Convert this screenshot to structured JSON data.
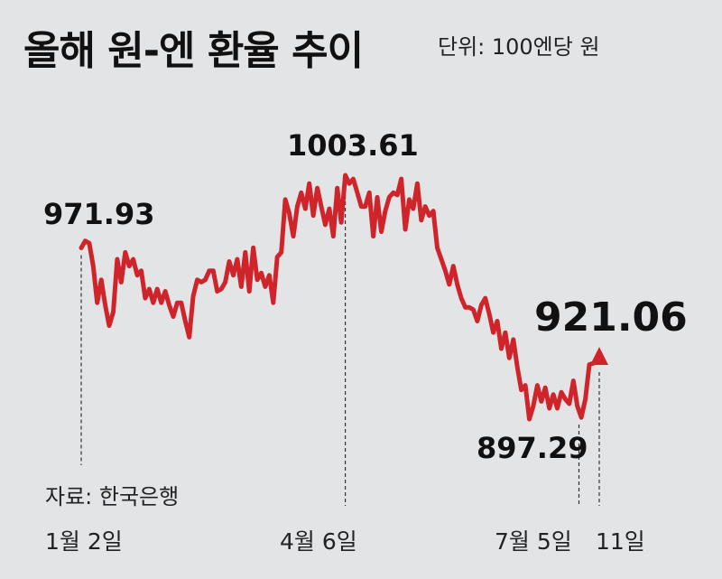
{
  "header": {
    "title": "올해 원-엔 환율 추이",
    "unit": "단위: 100엔당 원"
  },
  "source": "자료: 한국은행",
  "chart_data": {
    "type": "line",
    "title": "올해 원-엔 환율 추이",
    "ylabel": "100엔당 원",
    "ylim": [
      880,
      1020
    ],
    "line_color": "#d0242b",
    "x_ticks": [
      "1월 2일",
      "4월 6일",
      "7월 5일",
      "11일"
    ],
    "annotations": [
      {
        "label": "971.93",
        "date": "1월 2일",
        "value": 971.93
      },
      {
        "label": "1003.61",
        "date": "4월 6일",
        "value": 1003.61
      },
      {
        "label": "897.29",
        "date": "7월 5일",
        "value": 897.29
      },
      {
        "label": "921.06",
        "date": "11일",
        "value": 921.06,
        "highlight": true
      }
    ],
    "series": [
      {
        "values": [
          971.93,
          975.0,
          974.0,
          964.0,
          948.0,
          958.0,
          947.0,
          938.0,
          944.0,
          967.0,
          957.0,
          970.0,
          964.0,
          967.0,
          960.0,
          962.0,
          950.0,
          954.0,
          948.0,
          954.0,
          948.0,
          953.0,
          947.0,
          942.0,
          948.0,
          948.0,
          940.0,
          933.0,
          951.0,
          958.0,
          957.0,
          958.0,
          962.0,
          962.0,
          953.0,
          954.0,
          957.0,
          966.0,
          960.0,
          967.0,
          955.0,
          970.0,
          953.0,
          972.0,
          958.0,
          961.0,
          955.0,
          960.0,
          948.0,
          968.0,
          970.0,
          993.0,
          987.0,
          977.0,
          990.0,
          996.0,
          989.0,
          1000.0,
          986.0,
          998.0,
          990.0,
          982.0,
          989.0,
          977.0,
          998.0,
          983.0,
          1003.61,
          1000.0,
          1002.0,
          996.0,
          990.0,
          990.0,
          996.0,
          977.0,
          994.0,
          979.0,
          988.0,
          994.0,
          996.0,
          995.0,
          1002.0,
          980.0,
          993.0,
          989.0,
          1000.0,
          984.0,
          990.0,
          986.0,
          988.0,
          972.0,
          967.0,
          962.0,
          956.0,
          964.0,
          956.0,
          950.0,
          946.0,
          946.0,
          945.0,
          940.0,
          947.0,
          950.0,
          943.0,
          935.0,
          940.0,
          928.0,
          935.0,
          924.0,
          932.0,
          920.0,
          910.0,
          912.0,
          897.29,
          903.0,
          912.0,
          905.0,
          911.0,
          902.0,
          908.0,
          902.0,
          909.0,
          906.0,
          904.0,
          914.0,
          903.0,
          898.0,
          906.0,
          921.06
        ]
      }
    ]
  }
}
